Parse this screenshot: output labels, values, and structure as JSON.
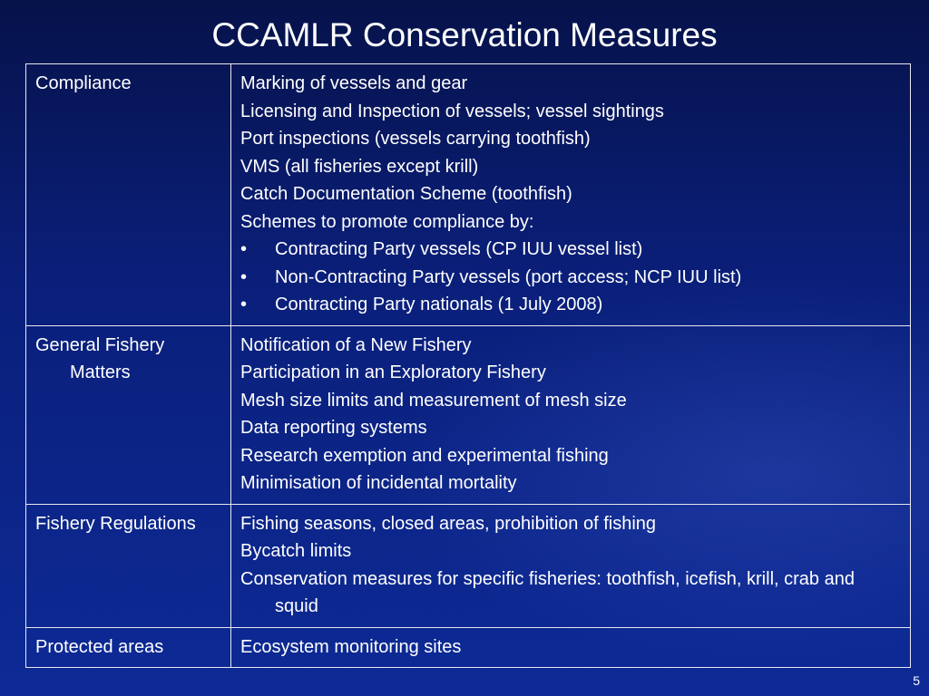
{
  "title": "CCAMLR Conservation Measures",
  "table": {
    "rows": [
      {
        "category": "Compliance",
        "items": [
          "Marking of vessels and gear",
          "Licensing and Inspection of vessels; vessel sightings",
          "Port inspections (vessels carrying toothfish)",
          "VMS (all fisheries except krill)",
          "Catch Documentation Scheme (toothfish)",
          "Schemes to promote compliance by:"
        ],
        "bullets": [
          "Contracting Party vessels (CP IUU vessel list)",
          "Non-Contracting Party vessels (port access; NCP IUU list)",
          "Contracting Party nationals (1 July 2008)"
        ]
      },
      {
        "category": "General Fishery Matters",
        "items": [
          "Notification of a New Fishery",
          "Participation in an Exploratory Fishery",
          "Mesh size limits and measurement of mesh size",
          "Data reporting systems",
          "Research exemption and experimental fishing",
          "Minimisation of incidental mortality"
        ]
      },
      {
        "category": "Fishery Regulations",
        "items": [
          "Fishing seasons, closed areas, prohibition of fishing",
          "Bycatch limits",
          "Conservation measures for specific fisheries: toothfish, icefish, krill, crab and squid"
        ]
      },
      {
        "category": "Protected areas",
        "items": [
          "Ecosystem monitoring sites"
        ]
      }
    ]
  },
  "page_number": "5"
}
